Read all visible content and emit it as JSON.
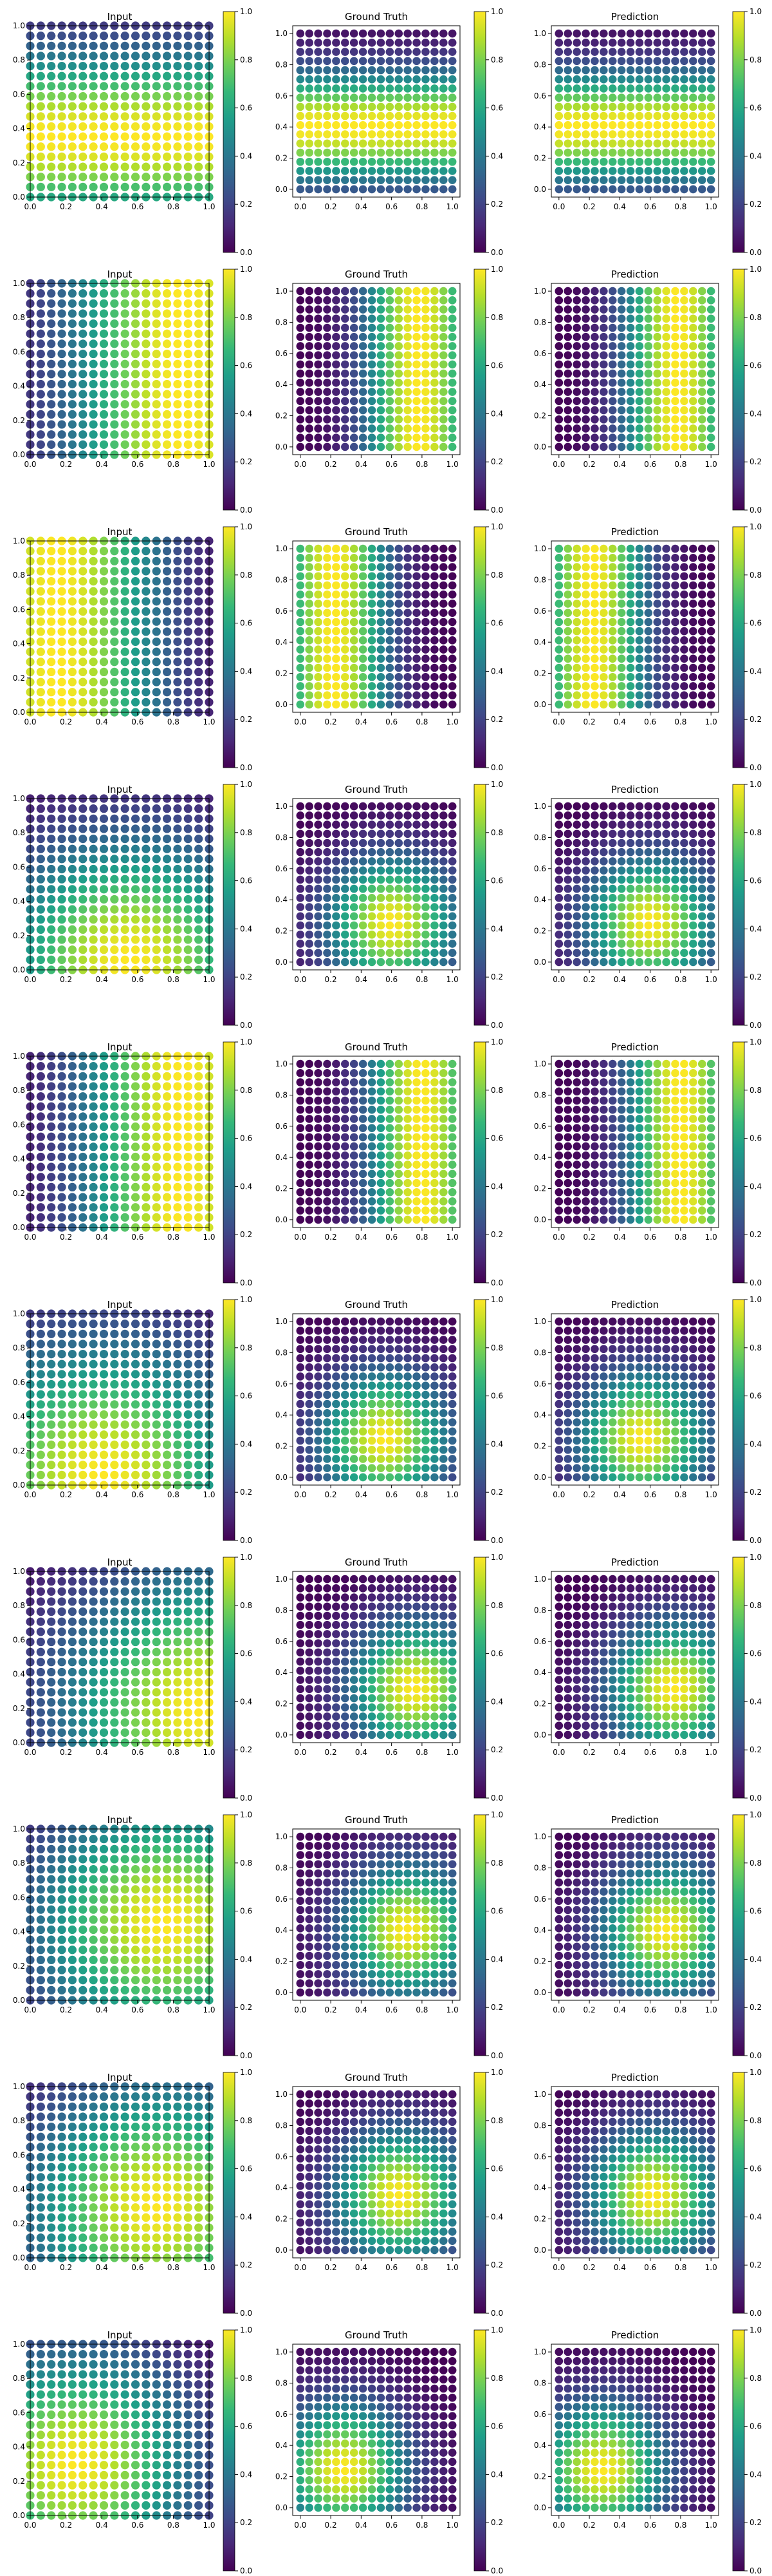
{
  "colormap": "viridis",
  "colormap_stops": [
    "#440154",
    "#482878",
    "#3e4a89",
    "#31688e",
    "#26828e",
    "#1f9e89",
    "#35b779",
    "#6ece58",
    "#b5de2b",
    "#fde725"
  ],
  "panel_titles": [
    "Input",
    "Ground Truth",
    "Prediction"
  ],
  "chart_data": {
    "type": "scatter",
    "description_of_layout": "",
    "grid_points": 18,
    "input_axis": {
      "xlim": [
        0,
        1
      ],
      "ylim": [
        0,
        1
      ],
      "ticks": [
        "0.0",
        "0.2",
        "0.4",
        "0.6",
        "0.8",
        "1.0"
      ]
    },
    "output_axis": {
      "xlim": [
        -0.05,
        1.05
      ],
      "ylim": [
        -0.05,
        1.05
      ],
      "ticks": [
        "0.0",
        "0.2",
        "0.4",
        "0.6",
        "0.8",
        "1.0"
      ]
    },
    "colorbar": {
      "range": [
        0,
        1
      ],
      "ticks": [
        "0.0",
        "0.2",
        "0.4",
        "0.6",
        "0.8",
        "1.0"
      ]
    },
    "rows": [
      {
        "input": {
          "kind": "gauss_y",
          "cy": 0.35,
          "w": 0.35
        },
        "ground_truth": {
          "kind": "gauss_y",
          "cy": 0.4,
          "w": 0.25
        },
        "prediction": {
          "kind": "gauss_y",
          "cy": 0.4,
          "w": 0.25
        }
      },
      {
        "input": {
          "kind": "gauss_x",
          "cx": 0.85,
          "w": 0.45
        },
        "ground_truth": {
          "kind": "gauss_x",
          "cx": 0.78,
          "w": 0.25
        },
        "prediction": {
          "kind": "gauss_x",
          "cx": 0.78,
          "w": 0.25
        }
      },
      {
        "input": {
          "kind": "gauss_x",
          "cx": 0.15,
          "w": 0.4
        },
        "ground_truth": {
          "kind": "gauss_x",
          "cx": 0.22,
          "w": 0.25
        },
        "prediction": {
          "kind": "gauss_x",
          "cx": 0.22,
          "w": 0.25
        }
      },
      {
        "input": {
          "kind": "gauss_2d",
          "cx": 0.55,
          "cy": 0.05,
          "w": 0.5
        },
        "ground_truth": {
          "kind": "gauss_2d",
          "cx": 0.6,
          "cy": 0.25,
          "w": 0.3
        },
        "prediction": {
          "kind": "gauss_2d",
          "cx": 0.6,
          "cy": 0.25,
          "w": 0.3
        }
      },
      {
        "input": {
          "kind": "gauss_x",
          "cx": 0.85,
          "w": 0.4
        },
        "ground_truth": {
          "kind": "gauss_x",
          "cx": 0.8,
          "w": 0.25
        },
        "prediction": {
          "kind": "gauss_x",
          "cx": 0.8,
          "w": 0.25
        }
      },
      {
        "input": {
          "kind": "gauss_2d",
          "cx": 0.4,
          "cy": 0.05,
          "w": 0.55
        },
        "ground_truth": {
          "kind": "gauss_2d",
          "cx": 0.55,
          "cy": 0.25,
          "w": 0.3
        },
        "prediction": {
          "kind": "gauss_2d",
          "cx": 0.55,
          "cy": 0.25,
          "w": 0.3
        }
      },
      {
        "input": {
          "kind": "gauss_2d",
          "cx": 0.95,
          "cy": 0.2,
          "w": 0.55
        },
        "ground_truth": {
          "kind": "gauss_2d",
          "cx": 0.75,
          "cy": 0.3,
          "w": 0.3
        },
        "prediction": {
          "kind": "gauss_2d",
          "cx": 0.75,
          "cy": 0.3,
          "w": 0.3
        }
      },
      {
        "input": {
          "kind": "gauss_2d",
          "cx": 0.75,
          "cy": 0.45,
          "w": 0.5
        },
        "ground_truth": {
          "kind": "gauss_2d",
          "cx": 0.7,
          "cy": 0.4,
          "w": 0.3
        },
        "prediction": {
          "kind": "gauss_2d",
          "cx": 0.7,
          "cy": 0.4,
          "w": 0.3
        }
      },
      {
        "input": {
          "kind": "gauss_2d",
          "cx": 0.7,
          "cy": 0.3,
          "w": 0.5
        },
        "ground_truth": {
          "kind": "gauss_2d",
          "cx": 0.65,
          "cy": 0.35,
          "w": 0.3
        },
        "prediction": {
          "kind": "gauss_2d",
          "cx": 0.62,
          "cy": 0.35,
          "w": 0.3
        }
      },
      {
        "input": {
          "kind": "gauss_2d",
          "cx": 0.25,
          "cy": 0.3,
          "w": 0.45
        },
        "ground_truth": {
          "kind": "gauss_2d",
          "cx": 0.28,
          "cy": 0.25,
          "w": 0.3
        },
        "prediction": {
          "kind": "gauss_2d",
          "cx": 0.28,
          "cy": 0.25,
          "w": 0.3
        }
      }
    ]
  }
}
